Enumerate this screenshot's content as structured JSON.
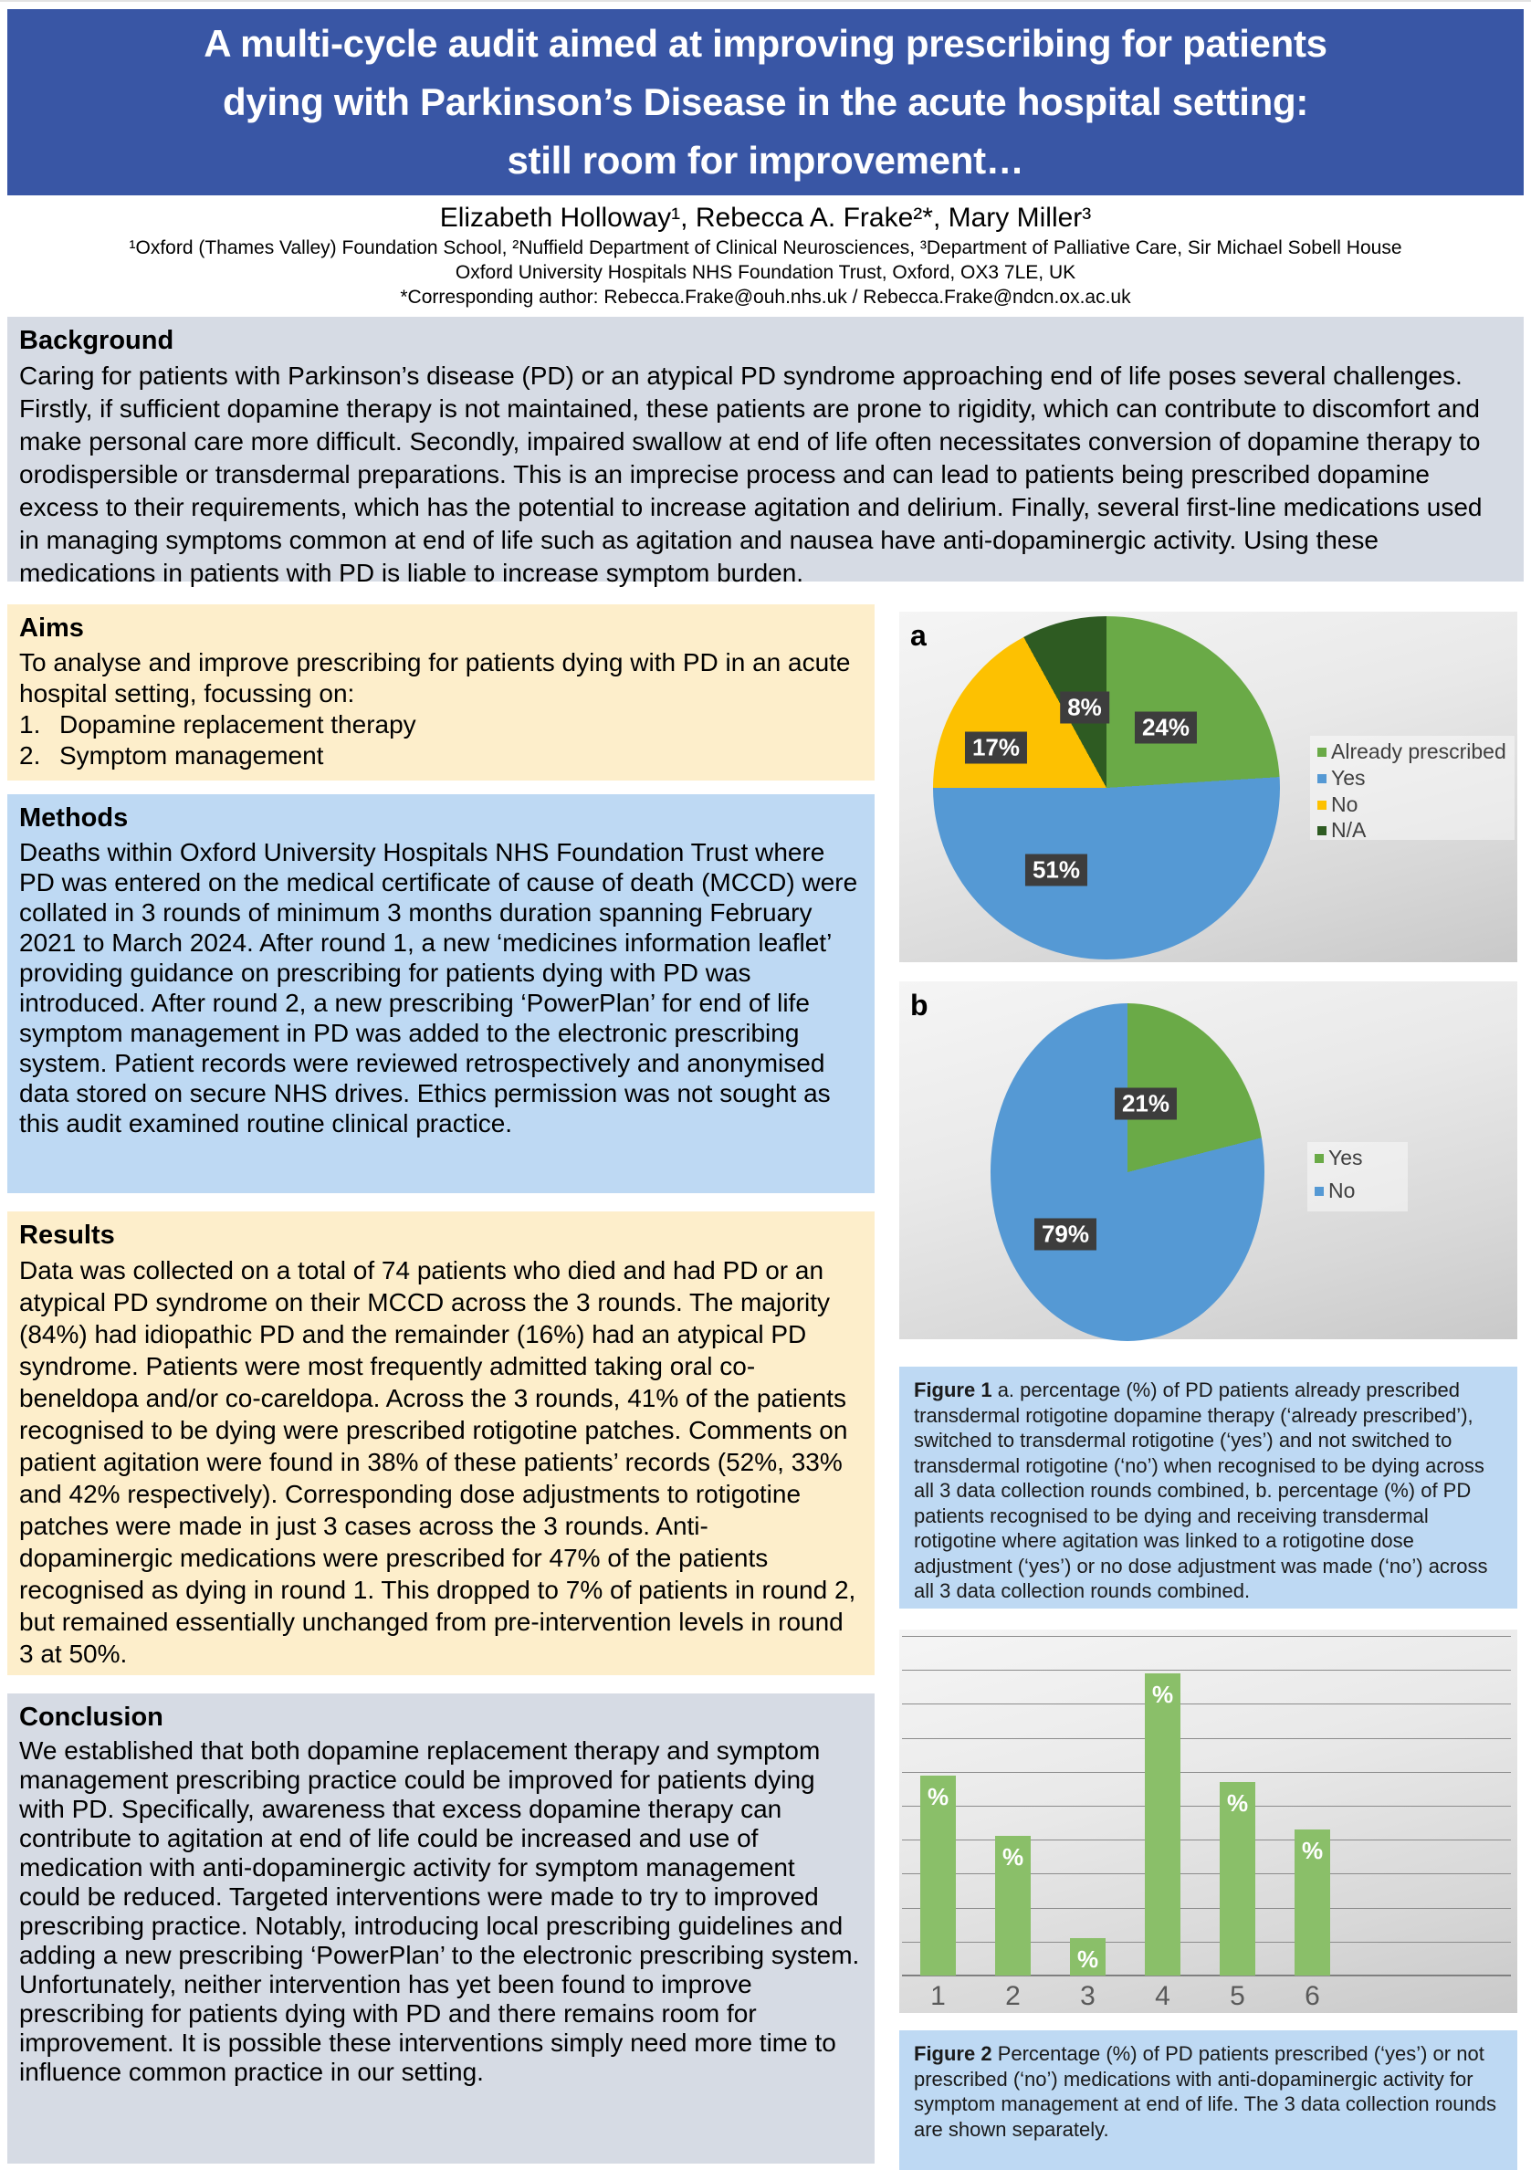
{
  "title_lines": [
    "A multi-cycle audit aimed at improving prescribing for patients",
    "dying with Parkinson’s Disease in the acute hospital setting:",
    "still room for improvement…"
  ],
  "authors": "Elizabeth Holloway¹, Rebecca A. Frake²*, Mary Miller³",
  "affiliations": [
    "¹Oxford (Thames Valley) Foundation School, ²Nuffield Department of Clinical Neurosciences, ³Department of Palliative Care, Sir Michael Sobell House",
    "Oxford University Hospitals NHS Foundation Trust, Oxford, OX3 7LE, UK",
    "*Corresponding author: Rebecca.Frake@ouh.nhs.uk / Rebecca.Frake@ndcn.ox.ac.uk"
  ],
  "sections": {
    "background": {
      "heading": "Background",
      "body": "Caring for patients with Parkinson’s disease (PD) or an atypical PD syndrome approaching end of life poses several challenges. Firstly, if sufficient dopamine therapy is not maintained, these patients are prone to rigidity, which can contribute to discomfort and make personal care more difficult. Secondly, impaired swallow at end of life often necessitates conversion of dopamine therapy to orodispersible or transdermal preparations. This is an imprecise process and can lead to patients being prescribed dopamine excess to their requirements, which has the potential to increase agitation and delirium. Finally, several first-line medications used in managing symptoms common at end of life such as agitation and nausea have anti-dopaminergic activity. Using these medications in patients with PD is liable to increase symptom burden."
    },
    "aims": {
      "heading": "Aims",
      "intro": "To analyse and improve prescribing for patients dying with PD in an acute hospital setting, focussing on:",
      "list": [
        {
          "num": "1.",
          "text": "Dopamine replacement therapy"
        },
        {
          "num": "2.",
          "text": "Symptom management"
        }
      ]
    },
    "methods": {
      "heading": "Methods",
      "body": "Deaths within Oxford University Hospitals NHS Foundation Trust where PD was entered on the medical certificate of cause of death (MCCD) were collated in 3 rounds of minimum 3 months duration spanning February 2021 to March 2024. After round 1, a new ‘medicines information leaflet’ providing guidance on prescribing for patients dying with PD was introduced. After round 2, a new prescribing ‘PowerPlan’ for end of life symptom management in PD was added to the electronic prescribing system. Patient records were reviewed retrospectively and anonymised data stored on secure NHS drives. Ethics permission was not sought as this audit examined routine clinical practice."
    },
    "results": {
      "heading": "Results",
      "body": "Data was collected on a total of 74 patients who died and had PD or an atypical PD syndrome on their MCCD across the 3 rounds. The majority (84%) had idiopathic PD and the remainder (16%) had an atypical PD syndrome. Patients were most frequently admitted taking oral co-beneldopa and/or co-careldopa. Across the 3 rounds, 41% of the patients recognised to be dying were prescribed rotigotine patches. Comments on patient agitation were found in 38% of these patients’ records (52%, 33% and 42% respectively). Corresponding dose adjustments to rotigotine patches were made in just 3 cases across the 3 rounds. Anti-dopaminergic medications were prescribed for 47% of the patients recognised as dying in round 1. This dropped to 7% of patients in round 2, but remained essentially unchanged from pre-intervention levels in round 3 at 50%."
    },
    "conclusion": {
      "heading": "Conclusion",
      "body": "We established that both dopamine replacement therapy and symptom management prescribing practice could be improved for patients dying with PD. Specifically, awareness that excess dopamine therapy can contribute to agitation at end of life could be increased and use of medication with anti-dopaminergic activity for symptom management could be reduced. Targeted interventions were made to try to improved prescribing practice. Notably, introducing local prescribing guidelines and adding a new prescribing ‘PowerPlan’ to the electronic prescribing system. Unfortunately, neither intervention has yet been found to improve prescribing for patients dying with PD and there remains room for improvement. It is possible these interventions simply need more time to influence common practice in our setting."
    }
  },
  "figures": {
    "fig1": {
      "label_a": "a",
      "label_b": "b",
      "caption_bold": "Figure 1",
      "caption_text": " a. percentage (%) of PD patients already prescribed transdermal rotigotine dopamine therapy (‘already prescribed’), switched to transdermal rotigotine (‘yes’) and not switched to transdermal rotigotine (‘no’) when recognised to be dying across all 3 data collection rounds combined, b. percentage (%) of PD patients recognised to be dying and receiving transdermal rotigotine where agitation was linked to a rotigotine dose adjustment (‘yes’) or no dose adjustment was made (‘no’) across all 3 data collection rounds combined."
    },
    "fig2": {
      "caption_bold": "Figure 2",
      "caption_text": " Percentage (%) of PD patients prescribed (‘yes’) or not prescribed (‘no’) medications with anti-dopaminergic activity for symptom management at end of life. The 3 data collection rounds are shown separately."
    }
  },
  "chart_data": [
    {
      "id": "fig1a",
      "type": "pie",
      "labels": [
        "Already prescribed",
        "Yes",
        "No",
        "N/A"
      ],
      "values": [
        24,
        51,
        17,
        8
      ],
      "data_labels": [
        "24%",
        "51%",
        "17%",
        "8%"
      ],
      "colors": [
        "#6aaa47",
        "#5599d4",
        "#fdc101",
        "#2e5b22"
      ],
      "title": "",
      "legend_position": "right"
    },
    {
      "id": "fig1b",
      "type": "pie",
      "labels": [
        "Yes",
        "No"
      ],
      "values": [
        21,
        79
      ],
      "data_labels": [
        "21%",
        "79%"
      ],
      "colors": [
        "#6aaa47",
        "#5599d4"
      ],
      "title": "",
      "legend_position": "right"
    },
    {
      "id": "fig2",
      "type": "bar",
      "categories": [
        "1",
        "2",
        "3",
        "4",
        "5",
        "6"
      ],
      "values": [
        59,
        41,
        11,
        89,
        57,
        43
      ],
      "bar_label": "%",
      "color": "#8abf69",
      "title": "",
      "xlabel": "",
      "ylabel": "",
      "ylim": [
        0,
        100
      ],
      "gridline_step": 10,
      "grid": true
    }
  ]
}
